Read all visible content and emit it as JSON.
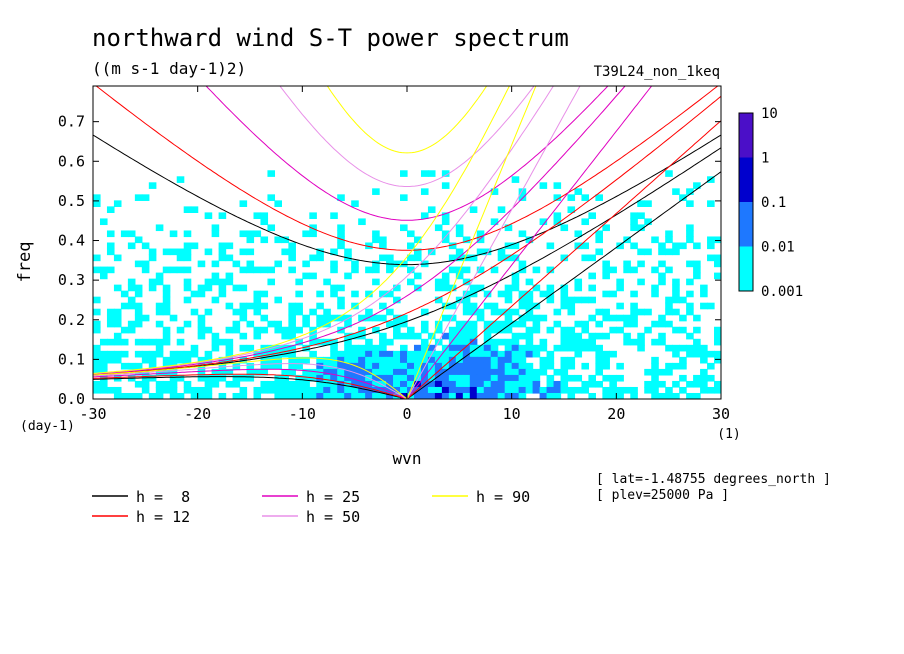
{
  "chart_data": {
    "type": "heatmap",
    "title": "northward wind S-T power spectrum",
    "subtitle": "((m s-1 day-1)2)",
    "run_label": "T39L24_non_1keq",
    "xlabel": "wvn",
    "ylabel": "freq",
    "x_unit": "(1)",
    "y_unit": "(day-1)",
    "xlim": [
      -30,
      30
    ],
    "ylim": [
      0,
      0.79
    ],
    "x_ticks": [
      -30,
      -20,
      -10,
      0,
      10,
      20,
      30
    ],
    "y_ticks": [
      0.0,
      0.1,
      0.2,
      0.3,
      0.4,
      0.5,
      0.6,
      0.7
    ],
    "x_tick_labels": [
      "-30",
      "-20",
      "-10",
      "0",
      "10",
      "20",
      "30"
    ],
    "y_tick_labels": [
      "0.0",
      "0.1",
      "0.2",
      "0.3",
      "0.4",
      "0.5",
      "0.6",
      "0.7"
    ],
    "colorbar": {
      "levels": [
        0.001,
        0.01,
        0.1,
        1,
        10
      ],
      "labels": [
        "0.001",
        "0.01",
        "0.1",
        "1",
        "10"
      ],
      "colors": [
        "#00ffff",
        "#1e78ff",
        "#0000cd",
        "#4b0fc8"
      ]
    },
    "dispersion_legend": [
      {
        "label": "h =  8",
        "h": 8,
        "color": "#000000"
      },
      {
        "label": "h = 12",
        "h": 12,
        "color": "#ff0000"
      },
      {
        "label": "h = 25",
        "h": 25,
        "color": "#e000c0"
      },
      {
        "label": "h = 50",
        "h": 50,
        "color": "#e890e8"
      },
      {
        "label": "h = 90",
        "h": 90,
        "color": "#ffff00"
      }
    ],
    "annotations": [
      "[ lat=-1.48755 degrees_north ]",
      "[ plev=25000 Pa ]"
    ]
  }
}
